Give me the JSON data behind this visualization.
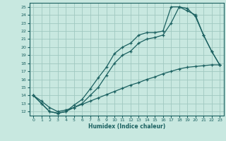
{
  "xlabel": "Humidex (Indice chaleur)",
  "bg_color": "#c8e8e0",
  "grid_color": "#a0c8c0",
  "line_color": "#1a6060",
  "xlim": [
    -0.5,
    23.5
  ],
  "ylim": [
    11.5,
    25.5
  ],
  "yticks": [
    12,
    13,
    14,
    15,
    16,
    17,
    18,
    19,
    20,
    21,
    22,
    23,
    24,
    25
  ],
  "xticks": [
    0,
    1,
    2,
    3,
    4,
    5,
    6,
    7,
    8,
    9,
    10,
    11,
    12,
    13,
    14,
    15,
    16,
    17,
    18,
    19,
    20,
    21,
    22,
    23
  ],
  "line1_x": [
    0,
    1,
    2,
    3,
    4,
    5,
    6,
    7,
    8,
    9,
    10,
    11,
    12,
    13,
    14,
    15,
    16,
    17,
    18,
    19,
    20,
    21,
    22,
    23
  ],
  "line1_y": [
    14,
    13,
    12,
    11.8,
    12,
    12.5,
    13.0,
    14.0,
    15.0,
    16.5,
    18.0,
    19.0,
    19.5,
    20.5,
    21.0,
    21.2,
    21.5,
    23.0,
    25.0,
    24.8,
    23.8,
    21.5,
    19.5,
    17.8
  ],
  "line2_x": [
    0,
    1,
    2,
    3,
    4,
    5,
    6,
    7,
    8,
    9,
    10,
    11,
    12,
    13,
    14,
    15,
    16,
    17,
    18,
    19,
    20,
    21,
    22,
    23
  ],
  "line2_y": [
    14,
    13,
    12,
    11.8,
    12,
    12.8,
    13.5,
    14.8,
    16.2,
    17.5,
    19.2,
    20.0,
    20.5,
    21.5,
    21.8,
    21.8,
    22.0,
    25.0,
    25.0,
    24.5,
    24.0,
    21.5,
    19.5,
    17.8
  ],
  "line3_x": [
    0,
    1,
    2,
    3,
    4,
    5,
    6,
    7,
    8,
    9,
    10,
    11,
    12,
    13,
    14,
    15,
    16,
    17,
    18,
    19,
    20,
    21,
    22,
    23
  ],
  "line3_y": [
    14,
    13.3,
    12.5,
    12.0,
    12.2,
    12.5,
    12.9,
    13.3,
    13.7,
    14.1,
    14.5,
    14.9,
    15.3,
    15.6,
    16.0,
    16.3,
    16.7,
    17.0,
    17.3,
    17.5,
    17.6,
    17.7,
    17.8,
    17.8
  ]
}
